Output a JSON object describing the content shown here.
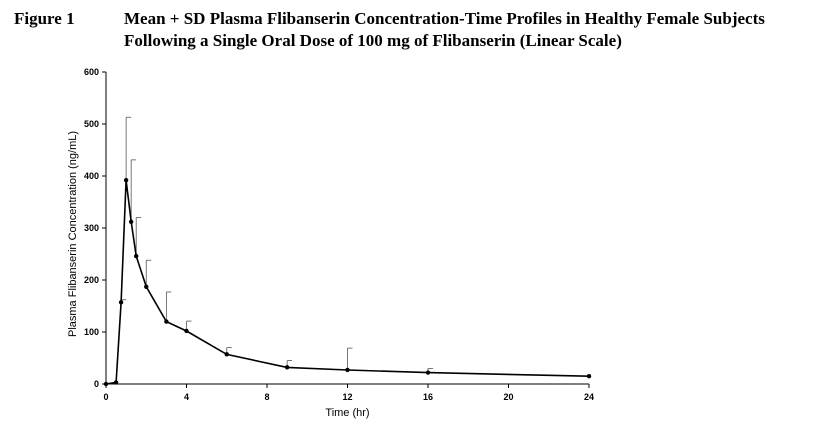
{
  "figure": {
    "label": "Figure 1",
    "title_line1": "Mean + SD Plasma Flibanserin Concentration-Time Profiles in Healthy Female Subjects",
    "title_line2": "Following a Single Oral Dose of 100 mg of Flibanserin (Linear Scale)"
  },
  "chart_data": {
    "type": "line",
    "title": "Mean + SD Plasma Flibanserin Concentration-Time Profiles in Healthy Female Subjects Following a Single Oral Dose of 100 mg of Flibanserin (Linear Scale)",
    "xlabel": "Time (hr)",
    "ylabel": "Plasma Flibanserin Concentration (ng/mL)",
    "xlim": [
      0,
      24
    ],
    "ylim": [
      0,
      600
    ],
    "xticks": [
      0,
      4,
      8,
      12,
      16,
      20,
      24
    ],
    "yticks": [
      0,
      100,
      200,
      300,
      400,
      500,
      600
    ],
    "grid": false,
    "legend": "none",
    "series": [
      {
        "x": [
          0,
          0.5,
          0.75,
          1,
          1.25,
          1.5,
          2,
          3,
          4,
          6,
          9,
          12,
          16,
          24
        ],
        "values": [
          0,
          3,
          157,
          392,
          312,
          246,
          187,
          120,
          102,
          57,
          32,
          27,
          22,
          15
        ],
        "error_plus_sd": [
          0,
          0,
          162,
          513,
          431,
          320,
          238,
          177,
          121,
          70,
          45,
          69,
          30,
          15
        ],
        "color": "#000000"
      }
    ]
  }
}
